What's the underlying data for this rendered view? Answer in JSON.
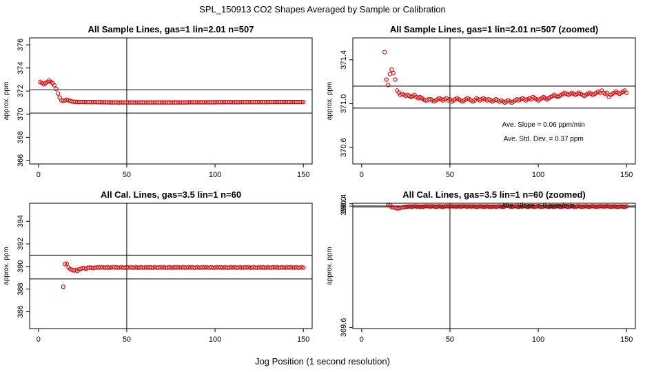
{
  "page": {
    "title": "SPL_150913  CO2 Shapes Averaged by Sample or Calibration",
    "xlabel": "Jog Position (1 second resolution)"
  },
  "colors": {
    "points": "#dd0000",
    "axes": "#000000",
    "background": "#ffffff"
  },
  "chart_data": [
    {
      "type": "scatter",
      "title": "All Sample Lines, gas=1 lin=2.01 n=507",
      "ylabel": "approx. ppm",
      "xlim": [
        -5,
        155
      ],
      "ylim": [
        365.7,
        376.6
      ],
      "xticks": [
        0,
        50,
        100,
        150
      ],
      "xtick_labels": [
        "0",
        "50",
        "100",
        "150"
      ],
      "yticks": [
        366,
        368,
        370,
        372,
        374,
        376
      ],
      "ytick_labels": [
        "366",
        "368",
        "370",
        "372",
        "374",
        "376"
      ],
      "vline": 50,
      "hlines": [
        372.1,
        370.1
      ],
      "annotations": [],
      "x": [
        1,
        2,
        3,
        4,
        5,
        6,
        7,
        8,
        9,
        10,
        11,
        12,
        13,
        14,
        15,
        16,
        17,
        18,
        19,
        20,
        21,
        22,
        23,
        24,
        25,
        26,
        27,
        28,
        29,
        30,
        31,
        32,
        33,
        34,
        35,
        36,
        37,
        38,
        39,
        40,
        41,
        42,
        43,
        44,
        45,
        46,
        47,
        48,
        49,
        50,
        51,
        52,
        53,
        54,
        55,
        56,
        57,
        58,
        59,
        60,
        61,
        62,
        63,
        64,
        65,
        66,
        67,
        68,
        69,
        70,
        71,
        72,
        73,
        74,
        75,
        76,
        77,
        78,
        79,
        80,
        81,
        82,
        83,
        84,
        85,
        86,
        87,
        88,
        89,
        90,
        91,
        92,
        93,
        94,
        95,
        96,
        97,
        98,
        99,
        100,
        101,
        102,
        103,
        104,
        105,
        106,
        107,
        108,
        109,
        110,
        111,
        112,
        113,
        114,
        115,
        116,
        117,
        118,
        119,
        120,
        121,
        122,
        123,
        124,
        125,
        126,
        127,
        128,
        129,
        130,
        131,
        132,
        133,
        134,
        135,
        136,
        137,
        138,
        139,
        140,
        141,
        142,
        143,
        144,
        145,
        146,
        147,
        148,
        149,
        150
      ],
      "y": [
        372.8,
        372.7,
        372.6,
        372.7,
        372.8,
        372.9,
        372.8,
        372.7,
        372.5,
        372.2,
        371.8,
        371.45,
        371.2,
        371.15,
        371.2,
        371.25,
        371.2,
        371.15,
        371.1,
        371.08,
        371.07,
        371.06,
        371.06,
        371.06,
        371.06,
        371.06,
        371.05,
        371.05,
        371.05,
        371.05,
        371.05,
        371.05,
        371.04,
        371.04,
        371.04,
        371.04,
        371.03,
        371.03,
        371.03,
        371.03,
        371.02,
        371.02,
        371.02,
        371.02,
        371.02,
        371.02,
        371.02,
        371.02,
        371.02,
        371.02,
        371.02,
        371.02,
        371.02,
        371.02,
        371.02,
        371.02,
        371.02,
        371.02,
        371.02,
        371.02,
        371.02,
        371.02,
        371.02,
        371.02,
        371.02,
        371.02,
        371.02,
        371.02,
        371.02,
        371.02,
        371.02,
        371.02,
        371.02,
        371.02,
        371.02,
        371.02,
        371.02,
        371.02,
        371.02,
        371.02,
        371.02,
        371.02,
        371.02,
        371.02,
        371.03,
        371.03,
        371.03,
        371.03,
        371.03,
        371.03,
        371.03,
        371.03,
        371.03,
        371.03,
        371.03,
        371.03,
        371.03,
        371.03,
        371.03,
        371.03,
        371.04,
        371.04,
        371.04,
        371.04,
        371.04,
        371.04,
        371.04,
        371.04,
        371.04,
        371.04,
        371.04,
        371.04,
        371.04,
        371.04,
        371.04,
        371.05,
        371.05,
        371.05,
        371.05,
        371.05,
        371.05,
        371.05,
        371.05,
        371.05,
        371.05,
        371.05,
        371.05,
        371.05,
        371.05,
        371.05,
        371.06,
        371.06,
        371.06,
        371.06,
        371.06,
        371.06,
        371.06,
        371.06,
        371.06,
        371.06,
        371.06,
        371.06,
        371.06,
        371.06,
        371.06,
        371.06,
        371.06,
        371.06,
        371.06,
        371.06
      ]
    },
    {
      "type": "scatter",
      "title": "All Sample Lines, gas=1 lin=2.01 n=507 (zoomed)",
      "ylabel": "approx. ppm",
      "xlim": [
        -5,
        155
      ],
      "ylim": [
        370.45,
        371.6
      ],
      "xticks": [
        0,
        50,
        100,
        150
      ],
      "xtick_labels": [
        "0",
        "50",
        "100",
        "150"
      ],
      "yticks": [
        370.6,
        371.0,
        371.4
      ],
      "ytick_labels": [
        "370.6",
        "371.0",
        "371.4"
      ],
      "vline": 50,
      "hlines": [
        371.16,
        370.96
      ],
      "annotations": [
        {
          "text": "Ave. Slope =  0.06  ppm/min",
          "x": 103,
          "y": 370.79
        },
        {
          "text": "Ave. Std. Dev. =  0.37  ppm",
          "x": 103,
          "y": 370.66
        }
      ],
      "x": [
        13,
        14,
        15,
        16,
        17,
        18,
        19,
        20,
        21,
        22,
        23,
        24,
        25,
        26,
        27,
        28,
        29,
        30,
        31,
        32,
        33,
        34,
        35,
        36,
        37,
        38,
        39,
        40,
        41,
        42,
        43,
        44,
        45,
        46,
        47,
        48,
        49,
        50,
        51,
        52,
        53,
        54,
        55,
        56,
        57,
        58,
        59,
        60,
        61,
        62,
        63,
        64,
        65,
        66,
        67,
        68,
        69,
        70,
        71,
        72,
        73,
        74,
        75,
        76,
        77,
        78,
        79,
        80,
        81,
        82,
        83,
        84,
        85,
        86,
        87,
        88,
        89,
        90,
        91,
        92,
        93,
        94,
        95,
        96,
        97,
        98,
        99,
        100,
        101,
        102,
        103,
        104,
        105,
        106,
        107,
        108,
        109,
        110,
        111,
        112,
        113,
        114,
        115,
        116,
        117,
        118,
        119,
        120,
        121,
        122,
        123,
        124,
        125,
        126,
        127,
        128,
        129,
        130,
        131,
        132,
        133,
        134,
        135,
        136,
        137,
        138,
        139,
        140,
        141,
        142,
        143,
        144,
        145,
        146,
        147,
        148,
        149,
        150
      ],
      "y": [
        371.47,
        371.22,
        371.17,
        371.27,
        371.31,
        371.28,
        371.22,
        371.12,
        371.1,
        371.08,
        371.09,
        371.08,
        371.07,
        371.08,
        371.07,
        371.06,
        371.07,
        371.08,
        371.06,
        371.05,
        371.06,
        371.05,
        371.04,
        371.03,
        371.03,
        371.04,
        371.04,
        371.03,
        371.02,
        371.03,
        371.04,
        371.05,
        371.04,
        371.03,
        371.04,
        371.05,
        371.03,
        371.04,
        371.02,
        371.03,
        371.04,
        371.05,
        371.04,
        371.03,
        371.02,
        371.03,
        371.04,
        371.05,
        371.04,
        371.03,
        371.02,
        371.03,
        371.05,
        371.04,
        371.03,
        371.04,
        371.05,
        371.04,
        371.03,
        371.04,
        371.03,
        371.02,
        371.03,
        371.04,
        371.03,
        371.02,
        371.03,
        371.02,
        371.01,
        371.02,
        371.03,
        371.02,
        371.01,
        371.02,
        371.03,
        371.04,
        371.03,
        371.04,
        371.05,
        371.04,
        371.03,
        371.04,
        371.05,
        371.04,
        371.06,
        371.05,
        371.04,
        371.03,
        371.04,
        371.05,
        371.06,
        371.05,
        371.04,
        371.05,
        371.06,
        371.07,
        371.08,
        371.07,
        371.06,
        371.07,
        371.08,
        371.09,
        371.1,
        371.09,
        371.08,
        371.09,
        371.1,
        371.09,
        371.08,
        371.09,
        371.1,
        371.09,
        371.08,
        371.07,
        371.08,
        371.09,
        371.1,
        371.09,
        371.08,
        371.09,
        371.1,
        371.11,
        371.1,
        371.12,
        371.1,
        371.09,
        371.1,
        371.06,
        371.08,
        371.09,
        371.1,
        371.11,
        371.1,
        371.09,
        371.1,
        371.11,
        371.12,
        371.1
      ]
    },
    {
      "type": "scatter",
      "title": "All Cal. Lines, gas=3.5 lin=1 n=60",
      "ylabel": "approx. ppm",
      "xlim": [
        -5,
        155
      ],
      "ylim": [
        384.5,
        395.6
      ],
      "xticks": [
        0,
        50,
        100,
        150
      ],
      "xtick_labels": [
        "0",
        "50",
        "100",
        "150"
      ],
      "yticks": [
        386,
        388,
        390,
        392,
        394
      ],
      "ytick_labels": [
        "386",
        "388",
        "390",
        "392",
        "394"
      ],
      "vline": 50,
      "hlines": [
        391.0,
        388.9
      ],
      "annotations": [],
      "x": [
        14,
        15,
        16,
        17,
        18,
        19,
        20,
        21,
        22,
        23,
        24,
        25,
        26,
        27,
        28,
        29,
        30,
        31,
        32,
        33,
        34,
        35,
        36,
        37,
        38,
        39,
        40,
        41,
        42,
        43,
        44,
        45,
        46,
        47,
        48,
        49,
        50,
        51,
        52,
        53,
        54,
        55,
        56,
        57,
        58,
        59,
        60,
        61,
        62,
        63,
        64,
        65,
        66,
        67,
        68,
        69,
        70,
        71,
        72,
        73,
        74,
        75,
        76,
        77,
        78,
        79,
        80,
        81,
        82,
        83,
        84,
        85,
        86,
        87,
        88,
        89,
        90,
        91,
        92,
        93,
        94,
        95,
        96,
        97,
        98,
        99,
        100,
        101,
        102,
        103,
        104,
        105,
        106,
        107,
        108,
        109,
        110,
        111,
        112,
        113,
        114,
        115,
        116,
        117,
        118,
        119,
        120,
        121,
        122,
        123,
        124,
        125,
        126,
        127,
        128,
        129,
        130,
        131,
        132,
        133,
        134,
        135,
        136,
        137,
        138,
        139,
        140,
        141,
        142,
        143,
        144,
        145,
        146,
        147,
        148,
        149,
        150
      ],
      "y": [
        388.2,
        390.2,
        390.25,
        389.9,
        389.75,
        389.7,
        389.65,
        389.7,
        389.6,
        389.75,
        389.8,
        389.85,
        389.85,
        389.8,
        389.9,
        389.9,
        389.9,
        389.85,
        389.9,
        389.9,
        389.95,
        389.9,
        389.95,
        389.9,
        389.9,
        389.95,
        389.9,
        389.9,
        389.95,
        389.9,
        389.95,
        389.9,
        389.9,
        389.95,
        389.9,
        389.9,
        389.95,
        389.9,
        389.95,
        389.9,
        389.9,
        389.95,
        389.9,
        389.9,
        389.95,
        389.9,
        389.9,
        389.95,
        389.9,
        389.95,
        389.9,
        389.9,
        389.95,
        389.9,
        389.9,
        389.95,
        389.9,
        389.95,
        389.9,
        389.9,
        389.95,
        389.9,
        389.9,
        389.95,
        389.9,
        389.95,
        389.9,
        389.9,
        389.95,
        389.9,
        389.9,
        389.95,
        389.9,
        389.95,
        389.9,
        389.9,
        389.95,
        389.9,
        389.9,
        389.95,
        389.9,
        389.95,
        389.9,
        389.9,
        389.95,
        389.9,
        389.9,
        389.95,
        389.9,
        389.95,
        389.9,
        389.9,
        389.95,
        389.9,
        389.9,
        389.95,
        389.9,
        389.95,
        389.9,
        389.9,
        389.95,
        389.9,
        389.9,
        389.95,
        389.9,
        389.95,
        389.9,
        389.9,
        389.95,
        389.9,
        389.9,
        389.95,
        389.9,
        389.95,
        389.9,
        389.9,
        389.95,
        389.9,
        389.9,
        389.95,
        389.9,
        389.95,
        389.9,
        389.9,
        389.95,
        389.9,
        389.9,
        389.95,
        389.9,
        389.95,
        389.9,
        389.9,
        389.95,
        389.9,
        389.9,
        389.95,
        389.9
      ]
    },
    {
      "type": "scatter",
      "title": "All Cal. Lines, gas=3.5 lin=1 n=60 (zoomed)",
      "ylabel": "approx. ppm",
      "xlim": [
        -5,
        155
      ],
      "ylim": [
        369.41,
        390.48
      ],
      "xticks": [
        0,
        50,
        100,
        150
      ],
      "xtick_labels": [
        "0",
        "50",
        "100",
        "150"
      ],
      "yticks": [
        369.6,
        390.0,
        390.4
      ],
      "ytick_labels": [
        "369.6",
        "390.0",
        "390.4"
      ],
      "vline": 50,
      "hlines": [
        390.02,
        389.84
      ],
      "annotations": [
        {
          "text": "Ave. Slope =  0  ppm/min",
          "x": 100,
          "y": 389.74
        }
      ],
      "x": [
        15,
        16,
        17,
        18,
        19,
        20,
        21,
        22,
        23,
        24,
        25,
        26,
        27,
        28,
        29,
        30,
        31,
        32,
        33,
        34,
        35,
        36,
        37,
        38,
        39,
        40,
        41,
        42,
        43,
        44,
        45,
        46,
        47,
        48,
        49,
        50,
        51,
        52,
        53,
        54,
        55,
        56,
        57,
        58,
        59,
        60,
        61,
        62,
        63,
        64,
        65,
        66,
        67,
        68,
        69,
        70,
        71,
        72,
        73,
        74,
        75,
        76,
        77,
        78,
        79,
        80,
        81,
        82,
        83,
        84,
        85,
        86,
        87,
        88,
        89,
        90,
        91,
        92,
        93,
        94,
        95,
        96,
        97,
        98,
        99,
        100,
        101,
        102,
        103,
        104,
        105,
        106,
        107,
        108,
        109,
        110,
        111,
        112,
        113,
        114,
        115,
        116,
        117,
        118,
        119,
        120,
        121,
        122,
        123,
        124,
        125,
        126,
        127,
        128,
        129,
        130,
        131,
        132,
        133,
        134,
        135,
        136,
        137,
        138,
        139,
        140,
        141,
        142,
        143,
        144,
        145,
        146,
        147,
        148,
        149,
        150
      ],
      "y": [
        390.17,
        390.19,
        389.82,
        389.78,
        389.7,
        389.62,
        389.61,
        389.73,
        389.77,
        389.82,
        389.85,
        389.9,
        389.95,
        389.88,
        389.93,
        389.97,
        389.92,
        389.95,
        389.9,
        389.88,
        389.93,
        389.96,
        389.98,
        389.95,
        389.92,
        389.97,
        389.95,
        389.9,
        389.93,
        389.97,
        389.92,
        389.88,
        389.95,
        389.98,
        389.96,
        389.93,
        389.97,
        389.95,
        389.94,
        389.92,
        389.97,
        389.93,
        389.96,
        389.98,
        389.95,
        389.92,
        389.97,
        389.93,
        389.96,
        389.94,
        389.9,
        389.93,
        389.97,
        389.94,
        389.9,
        389.93,
        389.96,
        389.92,
        389.89,
        389.93,
        389.95,
        389.9,
        389.94,
        389.97,
        389.93,
        389.9,
        389.94,
        390.05,
        390.04,
        389.93,
        389.9,
        389.95,
        389.98,
        389.93,
        389.9,
        389.96,
        389.93,
        390.0,
        389.95,
        389.9,
        389.94,
        389.97,
        389.93,
        389.9,
        389.96,
        389.99,
        389.93,
        389.9,
        389.95,
        389.97,
        389.93,
        389.9,
        389.96,
        389.94,
        389.89,
        389.95,
        389.98,
        389.92,
        389.89,
        389.95,
        389.98,
        389.93,
        389.88,
        389.95,
        389.97,
        389.93,
        389.85,
        389.96,
        389.98,
        389.92,
        389.89,
        389.95,
        389.97,
        389.93,
        389.89,
        389.96,
        389.98,
        389.94,
        389.9,
        389.95,
        389.98,
        389.96,
        389.93,
        389.96,
        389.99,
        389.95,
        389.9,
        389.93,
        389.96,
        389.92,
        389.89,
        389.93,
        389.96,
        389.93,
        389.9,
        389.96
      ]
    }
  ]
}
